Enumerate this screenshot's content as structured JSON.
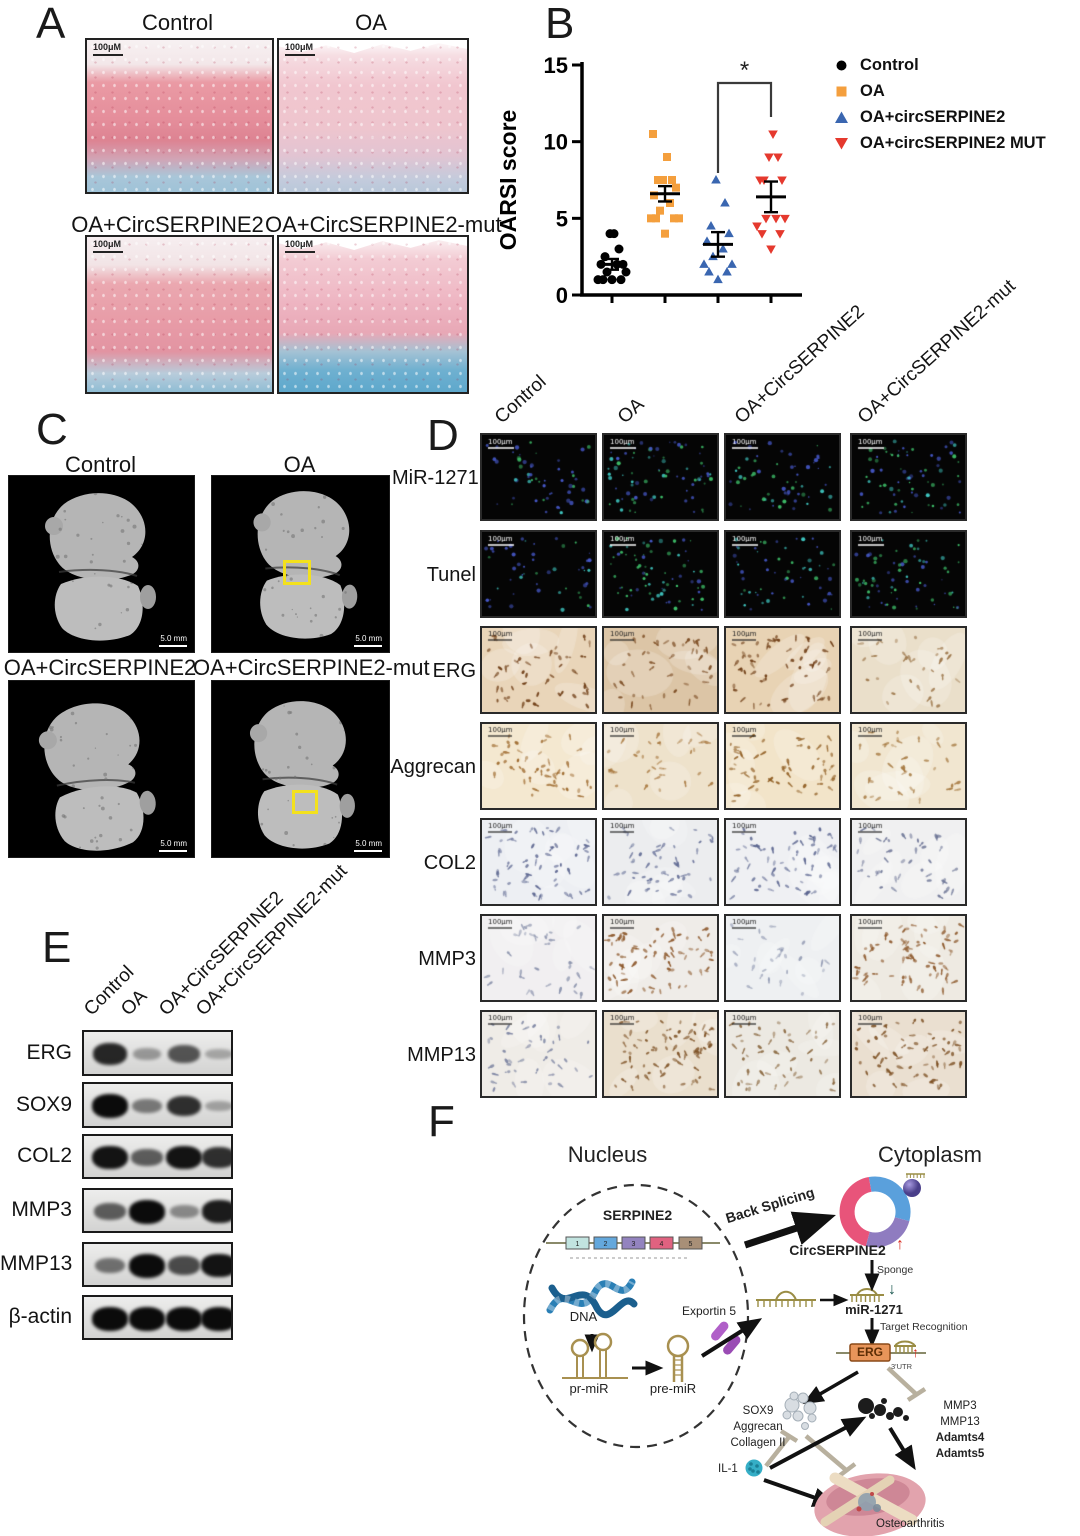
{
  "panel_a": {
    "label": "A",
    "scale_bar": "100μM",
    "images": [
      {
        "title": "Control"
      },
      {
        "title": "OA"
      },
      {
        "title": "OA+CircSERPINE2"
      },
      {
        "title": "OA+CircSERPINE2-mut"
      }
    ]
  },
  "panel_b": {
    "label": "B"
  },
  "chart_data": {
    "type": "scatter",
    "title": "",
    "xlabel": "",
    "ylabel": "OARSI score",
    "ylim": [
      0,
      15
    ],
    "yticks": [
      0,
      5,
      10,
      15
    ],
    "legend_position": "right",
    "groups": [
      {
        "name": "Control",
        "marker": "circle",
        "color": "#000000",
        "values": [
          1,
          1,
          1,
          1,
          1.5,
          1.5,
          2,
          2,
          2,
          2.5,
          3,
          4,
          4
        ],
        "mean": 2.0,
        "sem": 0.35
      },
      {
        "name": "OA",
        "marker": "square",
        "color": "#F49F3D",
        "values": [
          4,
          5,
          5,
          5,
          5,
          5.5,
          6,
          6.5,
          7,
          7.5,
          7.5,
          7.5,
          9,
          10.5
        ],
        "mean": 6.6,
        "sem": 0.5
      },
      {
        "name": "OA+circSERPINE2",
        "marker": "triangle-up",
        "color": "#3A66B0",
        "values": [
          1,
          1.5,
          1.5,
          2,
          2,
          2.5,
          3,
          3.5,
          4,
          4.5,
          6,
          7.5
        ],
        "mean": 3.3,
        "sem": 0.8
      },
      {
        "name": "OA+circSERPINE2 MUT",
        "marker": "triangle-down",
        "color": "#E5392E",
        "values": [
          3,
          4,
          4,
          4.5,
          5,
          5,
          5,
          7.5,
          7.5,
          7.5,
          9,
          9,
          10.5
        ],
        "mean": 6.4,
        "sem": 1.0
      }
    ],
    "significance": {
      "between": [
        2,
        3
      ],
      "label": "*"
    }
  },
  "panel_c": {
    "label": "C",
    "scale_bar": "5.0 mm",
    "images": [
      {
        "title": "Control",
        "highlight": false
      },
      {
        "title": "OA",
        "highlight": true
      },
      {
        "title": "OA+CircSERPINE2",
        "highlight": false
      },
      {
        "title": "OA+CircSERPINE2-mut",
        "highlight": true
      }
    ]
  },
  "panel_d": {
    "label": "D",
    "scale_bar": "100μm",
    "columns": [
      "Control",
      "OA",
      "OA+CircSERPINE2",
      "OA+CircSERPINE2-mut"
    ],
    "rows": [
      "MiR-1271",
      "Tunel",
      "ERG",
      "Aggrecan",
      "COL2",
      "MMP3",
      "MMP13"
    ]
  },
  "panel_e": {
    "label": "E",
    "columns": [
      "Control",
      "OA",
      "OA+CircSERPINE2",
      "OA+CircSERPINE2-mut"
    ],
    "rows": [
      "ERG",
      "SOX9",
      "COL2",
      "MMP3",
      "MMP13",
      "β-actin"
    ],
    "band_intensities": [
      [
        0.85,
        0.22,
        0.6,
        0.15
      ],
      [
        1.0,
        0.4,
        0.8,
        0.18
      ],
      [
        0.95,
        0.55,
        0.95,
        0.8
      ],
      [
        0.55,
        1.0,
        0.3,
        0.9
      ],
      [
        0.45,
        1.0,
        0.65,
        0.95
      ],
      [
        1.0,
        1.0,
        1.0,
        1.0
      ]
    ]
  },
  "panel_f": {
    "label": "F",
    "nucleus_label": "Nucleus",
    "cytoplasm_label": "Cytoplasm",
    "gene_label": "SERPINE2",
    "exons": [
      "1",
      "2",
      "3",
      "4",
      "5"
    ],
    "dna_label": "DNA",
    "pri_mir_label": "pr-miR",
    "pre_mir_label": "pre-miR",
    "exportin_label": "Exportin 5",
    "back_splicing_label": "Back Splicing",
    "circ_label": "CircSERPINE2",
    "circ_up_arrow": "↑",
    "sponge_label": "Sponge",
    "mir_label": "miR-1271",
    "mir_down_arrow": "↓",
    "target_label": "Target Recognition",
    "erg_label": "ERG",
    "utr_label": "3'UTR",
    "erg_up_arrow": "↑",
    "anabolic_labels": [
      "SOX9",
      "Aggrecan",
      "Collagen II"
    ],
    "catabolic_labels": [
      "MMP3",
      "MMP13",
      "Adamts4",
      "Adamts5"
    ],
    "il1_label": "IL-1",
    "oa_label": "Osteoarthritis"
  }
}
